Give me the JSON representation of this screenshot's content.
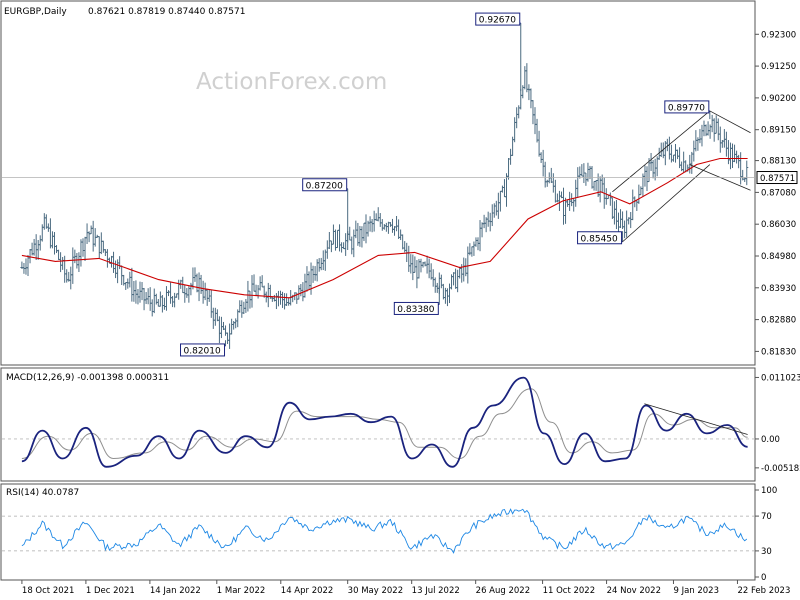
{
  "header": {
    "symbol_label": "EURGBP,Daily",
    "ohlc": "0.87621 0.87819 0.87440 0.87571"
  },
  "watermark": "ActionForex.com",
  "colors": {
    "bars": "#4a6a80",
    "ma": "#cc0000",
    "macd": "#1a237e",
    "signal": "#909090",
    "rsi": "#1e88e5",
    "frame": "#555555",
    "label_border": "#1a237e"
  },
  "chart_data": [
    {
      "type": "ohlc",
      "title": "EURGBP,Daily",
      "y_ticks": [
        "0.92300",
        "0.91250",
        "0.90200",
        "0.89150",
        "0.88130",
        "0.87080",
        "0.86030",
        "0.84980",
        "0.83930",
        "0.82880",
        "0.81830"
      ],
      "ylim": [
        0.8148,
        0.933
      ],
      "current_price_label": "0.87571",
      "current_price": 0.87571,
      "moving_average": "red line",
      "annotations": [
        {
          "text": "0.92670",
          "date": "2022-09-26",
          "price": 0.9267
        },
        {
          "text": "0.87200",
          "date": "2022-05-30",
          "price": 0.872
        },
        {
          "text": "0.82010",
          "date": "2022-03-07",
          "price": 0.8201
        },
        {
          "text": "0.83380",
          "date": "2022-08-01",
          "price": 0.8338
        },
        {
          "text": "0.85450",
          "date": "2022-12-05",
          "price": 0.8545
        },
        {
          "text": "0.89770",
          "date": "2023-02-03",
          "price": 0.8977
        }
      ],
      "channel": "falling channel from 0.89770"
    },
    {
      "type": "line",
      "title": "MACD(12,26,9) -0.001398 0.000311",
      "y_ticks": [
        "0.011023",
        "0.00",
        "-0.005182"
      ],
      "ylim": [
        -0.007,
        0.012
      ],
      "series": [
        {
          "name": "MACD",
          "values_note": "dark blue line"
        },
        {
          "name": "Signal",
          "values_note": "gray line"
        }
      ],
      "macd_points": [
        [
          "2021-10-18",
          -0.004
        ],
        [
          "2021-11-01",
          0.0015
        ],
        [
          "2021-11-15",
          -0.0035
        ],
        [
          "2021-12-01",
          0.002
        ],
        [
          "2021-12-15",
          -0.005
        ],
        [
          "2022-01-05",
          -0.003
        ],
        [
          "2022-01-20",
          0.0005
        ],
        [
          "2022-02-03",
          -0.0035
        ],
        [
          "2022-02-17",
          0.0015
        ],
        [
          "2022-03-07",
          -0.0025
        ],
        [
          "2022-03-21",
          0.0005
        ],
        [
          "2022-04-05",
          -0.0015
        ],
        [
          "2022-04-20",
          0.0065
        ],
        [
          "2022-05-04",
          0.0035
        ],
        [
          "2022-05-18",
          0.004
        ],
        [
          "2022-06-01",
          0.0045
        ],
        [
          "2022-06-15",
          0.003
        ],
        [
          "2022-06-29",
          0.004
        ],
        [
          "2022-07-13",
          -0.0035
        ],
        [
          "2022-07-27",
          -0.001
        ],
        [
          "2022-08-10",
          -0.005
        ],
        [
          "2022-08-24",
          0.002
        ],
        [
          "2022-09-07",
          0.006
        ],
        [
          "2022-09-28",
          0.011
        ],
        [
          "2022-10-12",
          0.001
        ],
        [
          "2022-10-26",
          -0.0045
        ],
        [
          "2022-11-09",
          0.001
        ],
        [
          "2022-11-23",
          -0.004
        ],
        [
          "2022-12-07",
          -0.0035
        ],
        [
          "2022-12-21",
          0.006
        ],
        [
          "2023-01-04",
          0.0015
        ],
        [
          "2023-01-18",
          0.0045
        ],
        [
          "2023-02-01",
          0.001
        ],
        [
          "2023-02-15",
          0.0025
        ],
        [
          "2023-03-01",
          -0.0014
        ]
      ],
      "signal_points": [
        [
          "2021-10-18",
          -0.0035
        ],
        [
          "2021-11-05",
          0.0005
        ],
        [
          "2021-11-20",
          -0.002
        ],
        [
          "2021-12-05",
          0.001
        ],
        [
          "2021-12-20",
          -0.0035
        ],
        [
          "2022-01-10",
          -0.0025
        ],
        [
          "2022-01-25",
          -0.0005
        ],
        [
          "2022-02-08",
          -0.002
        ],
        [
          "2022-02-22",
          0.0005
        ],
        [
          "2022-03-12",
          -0.0015
        ],
        [
          "2022-03-26",
          0.0
        ],
        [
          "2022-04-10",
          -0.0005
        ],
        [
          "2022-04-25",
          0.005
        ],
        [
          "2022-05-09",
          0.004
        ],
        [
          "2022-05-23",
          0.004
        ],
        [
          "2022-06-06",
          0.004
        ],
        [
          "2022-06-20",
          0.0035
        ],
        [
          "2022-07-04",
          0.003
        ],
        [
          "2022-07-18",
          -0.0015
        ],
        [
          "2022-08-01",
          -0.0015
        ],
        [
          "2022-08-15",
          -0.0035
        ],
        [
          "2022-08-29",
          0.0005
        ],
        [
          "2022-09-12",
          0.0045
        ],
        [
          "2022-10-03",
          0.009
        ],
        [
          "2022-10-17",
          0.003
        ],
        [
          "2022-10-31",
          -0.0025
        ],
        [
          "2022-11-14",
          -0.0005
        ],
        [
          "2022-11-28",
          -0.0025
        ],
        [
          "2022-12-12",
          -0.002
        ],
        [
          "2022-12-26",
          0.0045
        ],
        [
          "2023-01-09",
          0.0025
        ],
        [
          "2023-01-23",
          0.0035
        ],
        [
          "2023-02-06",
          0.002
        ],
        [
          "2023-02-20",
          0.002
        ],
        [
          "2023-03-01",
          0.0003
        ]
      ]
    },
    {
      "type": "line",
      "title": "RSI(14) 40.0787",
      "y_ticks": [
        "100",
        "70",
        "30",
        "0"
      ],
      "ylim": [
        0,
        100
      ],
      "levels": [
        70,
        30
      ],
      "rsi_points": [
        [
          "2021-10-18",
          34
        ],
        [
          "2021-11-01",
          62
        ],
        [
          "2021-11-15",
          36
        ],
        [
          "2021-12-01",
          63
        ],
        [
          "2021-12-15",
          34
        ],
        [
          "2022-01-05",
          38
        ],
        [
          "2022-01-20",
          60
        ],
        [
          "2022-02-03",
          36
        ],
        [
          "2022-02-17",
          58
        ],
        [
          "2022-03-07",
          33
        ],
        [
          "2022-03-21",
          56
        ],
        [
          "2022-04-05",
          42
        ],
        [
          "2022-04-20",
          70
        ],
        [
          "2022-05-04",
          55
        ],
        [
          "2022-05-18",
          64
        ],
        [
          "2022-06-01",
          66
        ],
        [
          "2022-06-15",
          55
        ],
        [
          "2022-06-29",
          64
        ],
        [
          "2022-07-13",
          33
        ],
        [
          "2022-07-27",
          48
        ],
        [
          "2022-08-10",
          30
        ],
        [
          "2022-08-24",
          58
        ],
        [
          "2022-09-07",
          70
        ],
        [
          "2022-09-28",
          80
        ],
        [
          "2022-10-12",
          45
        ],
        [
          "2022-10-26",
          33
        ],
        [
          "2022-11-09",
          55
        ],
        [
          "2022-11-23",
          34
        ],
        [
          "2022-12-07",
          38
        ],
        [
          "2022-12-21",
          70
        ],
        [
          "2023-01-04",
          54
        ],
        [
          "2023-01-18",
          68
        ],
        [
          "2023-02-01",
          50
        ],
        [
          "2023-02-15",
          60
        ],
        [
          "2023-03-01",
          40
        ]
      ]
    }
  ],
  "x_ticks": [
    "18 Oct 2021",
    "1 Dec 2021",
    "14 Jan 2022",
    "1 Mar 2022",
    "14 Apr 2022",
    "30 May 2022",
    "13 Jul 2022",
    "26 Aug 2022",
    "11 Oct 2022",
    "24 Nov 2022",
    "9 Jan 2023",
    "22 Feb 2023"
  ],
  "x_tick_dates": [
    "2021-10-18",
    "2021-12-01",
    "2022-01-14",
    "2022-03-01",
    "2022-04-14",
    "2022-05-30",
    "2022-07-13",
    "2022-08-26",
    "2022-10-11",
    "2022-11-24",
    "2023-01-09",
    "2023-02-22"
  ],
  "price_path": [
    [
      "2021-10-18",
      0.846
    ],
    [
      "2021-11-03",
      0.86
    ],
    [
      "2021-11-18",
      0.842
    ],
    [
      "2021-12-02",
      0.858
    ],
    [
      "2021-12-20",
      0.848
    ],
    [
      "2022-01-05",
      0.837
    ],
    [
      "2022-01-20",
      0.833
    ],
    [
      "2022-02-03",
      0.839
    ],
    [
      "2022-02-17",
      0.841
    ],
    [
      "2022-03-07",
      0.822
    ],
    [
      "2022-03-21",
      0.837
    ],
    [
      "2022-04-05",
      0.839
    ],
    [
      "2022-04-20",
      0.834
    ],
    [
      "2022-05-04",
      0.842
    ],
    [
      "2022-05-18",
      0.856
    ],
    [
      "2022-06-01",
      0.854
    ],
    [
      "2022-06-15",
      0.86
    ],
    [
      "2022-06-29",
      0.862
    ],
    [
      "2022-07-13",
      0.845
    ],
    [
      "2022-07-27",
      0.845
    ],
    [
      "2022-08-03",
      0.838
    ],
    [
      "2022-08-17",
      0.844
    ],
    [
      "2022-08-31",
      0.86
    ],
    [
      "2022-09-14",
      0.87
    ],
    [
      "2022-09-28",
      0.91
    ],
    [
      "2022-10-12",
      0.878
    ],
    [
      "2022-10-26",
      0.865
    ],
    [
      "2022-11-09",
      0.878
    ],
    [
      "2022-11-23",
      0.87
    ],
    [
      "2022-12-05",
      0.858
    ],
    [
      "2022-12-19",
      0.875
    ],
    [
      "2023-01-04",
      0.885
    ],
    [
      "2023-01-18",
      0.88
    ],
    [
      "2023-02-03",
      0.895
    ],
    [
      "2023-02-15",
      0.885
    ],
    [
      "2023-03-01",
      0.8757
    ]
  ],
  "ma_path": [
    [
      "2021-10-18",
      0.85
    ],
    [
      "2021-11-10",
      0.848
    ],
    [
      "2021-12-10",
      0.849
    ],
    [
      "2022-01-20",
      0.842
    ],
    [
      "2022-02-20",
      0.839
    ],
    [
      "2022-03-20",
      0.837
    ],
    [
      "2022-04-20",
      0.836
    ],
    [
      "2022-05-20",
      0.842
    ],
    [
      "2022-06-20",
      0.85
    ],
    [
      "2022-07-15",
      0.851
    ],
    [
      "2022-08-15",
      0.846
    ],
    [
      "2022-09-05",
      0.848
    ],
    [
      "2022-10-01",
      0.862
    ],
    [
      "2022-10-25",
      0.868
    ],
    [
      "2022-11-20",
      0.871
    ],
    [
      "2022-12-10",
      0.867
    ],
    [
      "2023-01-05",
      0.874
    ],
    [
      "2023-01-25",
      0.88
    ],
    [
      "2023-02-10",
      0.882
    ],
    [
      "2023-03-01",
      0.882
    ]
  ]
}
